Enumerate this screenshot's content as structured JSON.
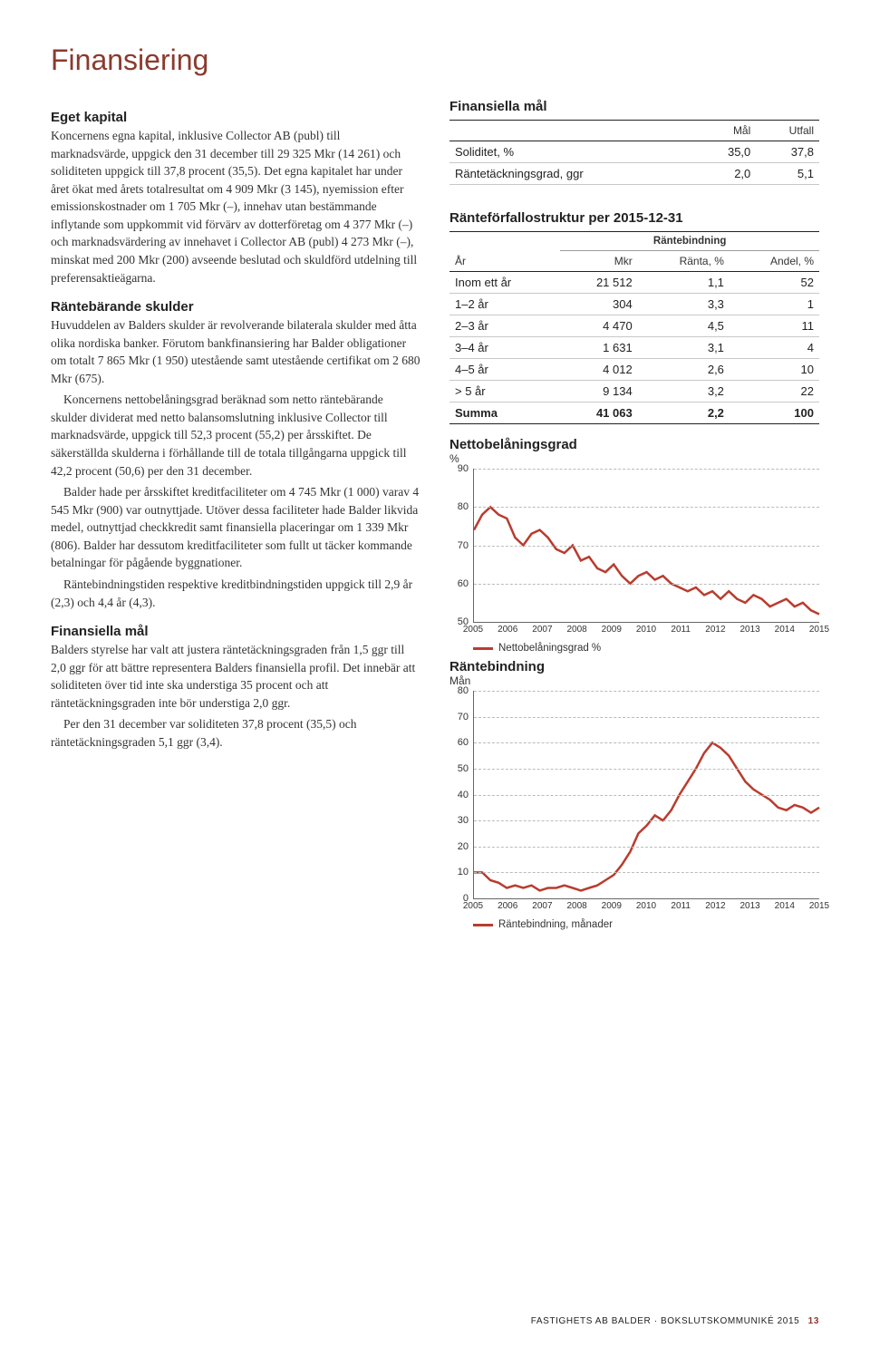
{
  "page_title": "Finansiering",
  "sections": {
    "eget_kapital": {
      "heading": "Eget kapital",
      "p1": "Koncernens egna kapital, inklusive Collector AB (publ) till marknadsvärde, uppgick den 31 december till 29 325 Mkr (14 261) och soliditeten uppgick till 37,8 procent (35,5). Det egna kapitalet har under året ökat med årets totalresultat om 4 909 Mkr (3 145), nyemission efter emissionskostnader om 1 705 Mkr (–), innehav utan bestämmande inflytande som uppkommit vid förvärv av dotterföretag om 4 377 Mkr (–) och marknadsvärdering av innehavet i Collector AB (publ) 4 273 Mkr (–), minskat med 200 Mkr (200) avseende beslutad och skuldförd utdelning till preferensaktieägarna."
    },
    "rantebarande": {
      "heading": "Räntebärande skulder",
      "p1": "Huvuddelen av Balders skulder är revolverande bilaterala skulder med åtta olika nordiska banker. Förutom bankfinansiering har Balder obligationer om totalt 7 865 Mkr (1 950) utestående samt utestående certifikat om 2 680 Mkr (675).",
      "p2": "Koncernens nettobelåningsgrad beräknad som netto räntebärande skulder dividerat med netto balansomslutning inklusive Collector till marknadsvärde, uppgick till 52,3 procent (55,2) per årsskiftet. De säkerställda skulderna i förhållande till de totala tillgångarna uppgick till 42,2 procent (50,6) per den 31 december.",
      "p3": "Balder hade per årsskiftet kreditfaciliteter om 4 745 Mkr (1 000) varav 4 545 Mkr (900) var outnyttjade. Utöver dessa faciliteter hade Balder likvida medel, outnyttjad checkkredit samt finansiella placeringar om 1 339 Mkr (806). Balder har dessutom kreditfaciliteter som fullt ut täcker kommande betalningar för pågående byggnationer.",
      "p4": "Räntebindningstiden respektive kreditbindningstiden uppgick till 2,9 år (2,3) och 4,4 år (4,3)."
    },
    "finansiella_mal_text": {
      "heading": "Finansiella mål",
      "p1": "Balders styrelse har valt att justera räntetäckningsgraden från 1,5 ggr till 2,0 ggr för att bättre representera Balders finansiella profil. Det innebär att soliditeten över tid inte ska understiga 35 procent och att räntetäckningsgraden inte bör understiga 2,0 ggr.",
      "p2": "Per den 31 december var soliditeten 37,8 procent (35,5) och räntetäckningsgraden 5,1 ggr (3,4)."
    }
  },
  "table_mal": {
    "title": "Finansiella mål",
    "headers": [
      "",
      "Mål",
      "Utfall"
    ],
    "rows": [
      [
        "Soliditet, %",
        "35,0",
        "37,8"
      ],
      [
        "Räntetäckningsgrad, ggr",
        "2,0",
        "5,1"
      ]
    ]
  },
  "table_rff": {
    "title": "Ränteförfallostruktur per 2015-12-31",
    "subhead": "Räntebindning",
    "headers": [
      "År",
      "Mkr",
      "Ränta, %",
      "Andel, %"
    ],
    "rows": [
      [
        "Inom ett år",
        "21 512",
        "1,1",
        "52"
      ],
      [
        "1–2 år",
        "304",
        "3,3",
        "1"
      ],
      [
        "2–3 år",
        "4 470",
        "4,5",
        "11"
      ],
      [
        "3–4 år",
        "1 631",
        "3,1",
        "4"
      ],
      [
        "4–5 år",
        "4 012",
        "2,6",
        "10"
      ],
      [
        "> 5 år",
        "9 134",
        "3,2",
        "22"
      ]
    ],
    "sum": [
      "Summa",
      "41 063",
      "2,2",
      "100"
    ]
  },
  "chart_netto": {
    "type": "line",
    "title": "Nettobelåningsgrad",
    "subtitle": "%",
    "line_color": "#b93c2e",
    "line_width": 2.5,
    "grid_color": "#bbbbbb",
    "axis_color": "#666666",
    "background_color": "#ffffff",
    "ylim": [
      50,
      90
    ],
    "ytick_step": 10,
    "x_labels": [
      "2005",
      "2006",
      "2007",
      "2008",
      "2009",
      "2010",
      "2011",
      "2012",
      "2013",
      "2014",
      "2015"
    ],
    "values": [
      74,
      78,
      80,
      78,
      77,
      72,
      70,
      73,
      74,
      72,
      69,
      68,
      70,
      66,
      67,
      64,
      63,
      65,
      62,
      60,
      62,
      63,
      61,
      62,
      60,
      59,
      58,
      59,
      57,
      58,
      56,
      58,
      56,
      55,
      57,
      56,
      54,
      55,
      56,
      54,
      55,
      53,
      52
    ],
    "legend": "Nettobelåningsgrad %"
  },
  "chart_rb": {
    "type": "line",
    "title": "Räntebindning",
    "subtitle": "Mån",
    "line_color": "#b93c2e",
    "line_width": 2.5,
    "grid_color": "#bbbbbb",
    "axis_color": "#666666",
    "background_color": "#ffffff",
    "ylim": [
      0,
      80
    ],
    "ytick_step": 10,
    "x_labels": [
      "2005",
      "2006",
      "2007",
      "2008",
      "2009",
      "2010",
      "2011",
      "2012",
      "2013",
      "2014",
      "2015"
    ],
    "values": [
      10,
      10,
      7,
      6,
      4,
      5,
      4,
      5,
      3,
      4,
      4,
      5,
      4,
      3,
      4,
      5,
      7,
      9,
      13,
      18,
      25,
      28,
      32,
      30,
      34,
      40,
      45,
      50,
      56,
      60,
      58,
      55,
      50,
      45,
      42,
      40,
      38,
      35,
      34,
      36,
      35,
      33,
      35
    ],
    "legend": "Räntebindning, månader"
  },
  "footer": {
    "text": "FASTIGHETS AB BALDER · BOKSLUTSKOMMUNIKÉ 2015",
    "page": "13"
  }
}
